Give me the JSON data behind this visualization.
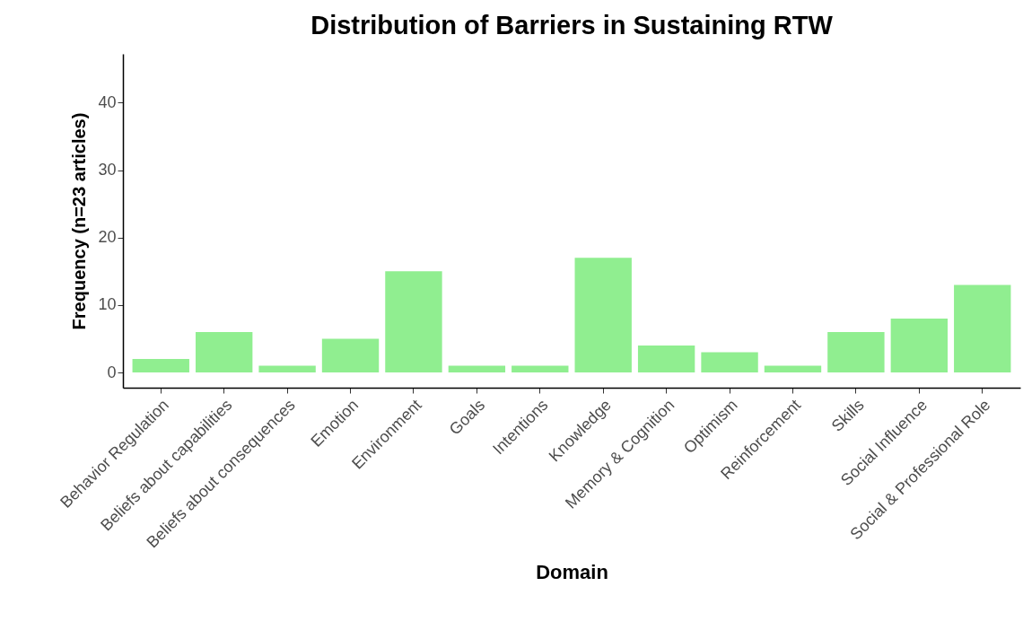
{
  "chart_data": {
    "type": "bar",
    "title": "Distribution of Barriers in Sustaining RTW",
    "xlabel": "Domain",
    "ylabel": "Frequency (n=23 articles)",
    "categories": [
      "Behavior Regulation",
      "Beliefs about capabilities",
      "Beliefs about consequences",
      "Emotion",
      "Environment",
      "Goals",
      "Intentions",
      "Knowledge",
      "Memory & Cognition",
      "Optimism",
      "Reinforcement",
      "Skills",
      "Social Influence",
      "Social & Professional Role"
    ],
    "values": [
      2,
      6,
      1,
      5,
      15,
      1,
      1,
      17,
      4,
      3,
      1,
      6,
      8,
      13
    ],
    "color": "#90ee90",
    "ylim": [
      -2.25,
      47.25
    ],
    "yticks": [
      0,
      10,
      20,
      30,
      40
    ],
    "grid": false
  }
}
